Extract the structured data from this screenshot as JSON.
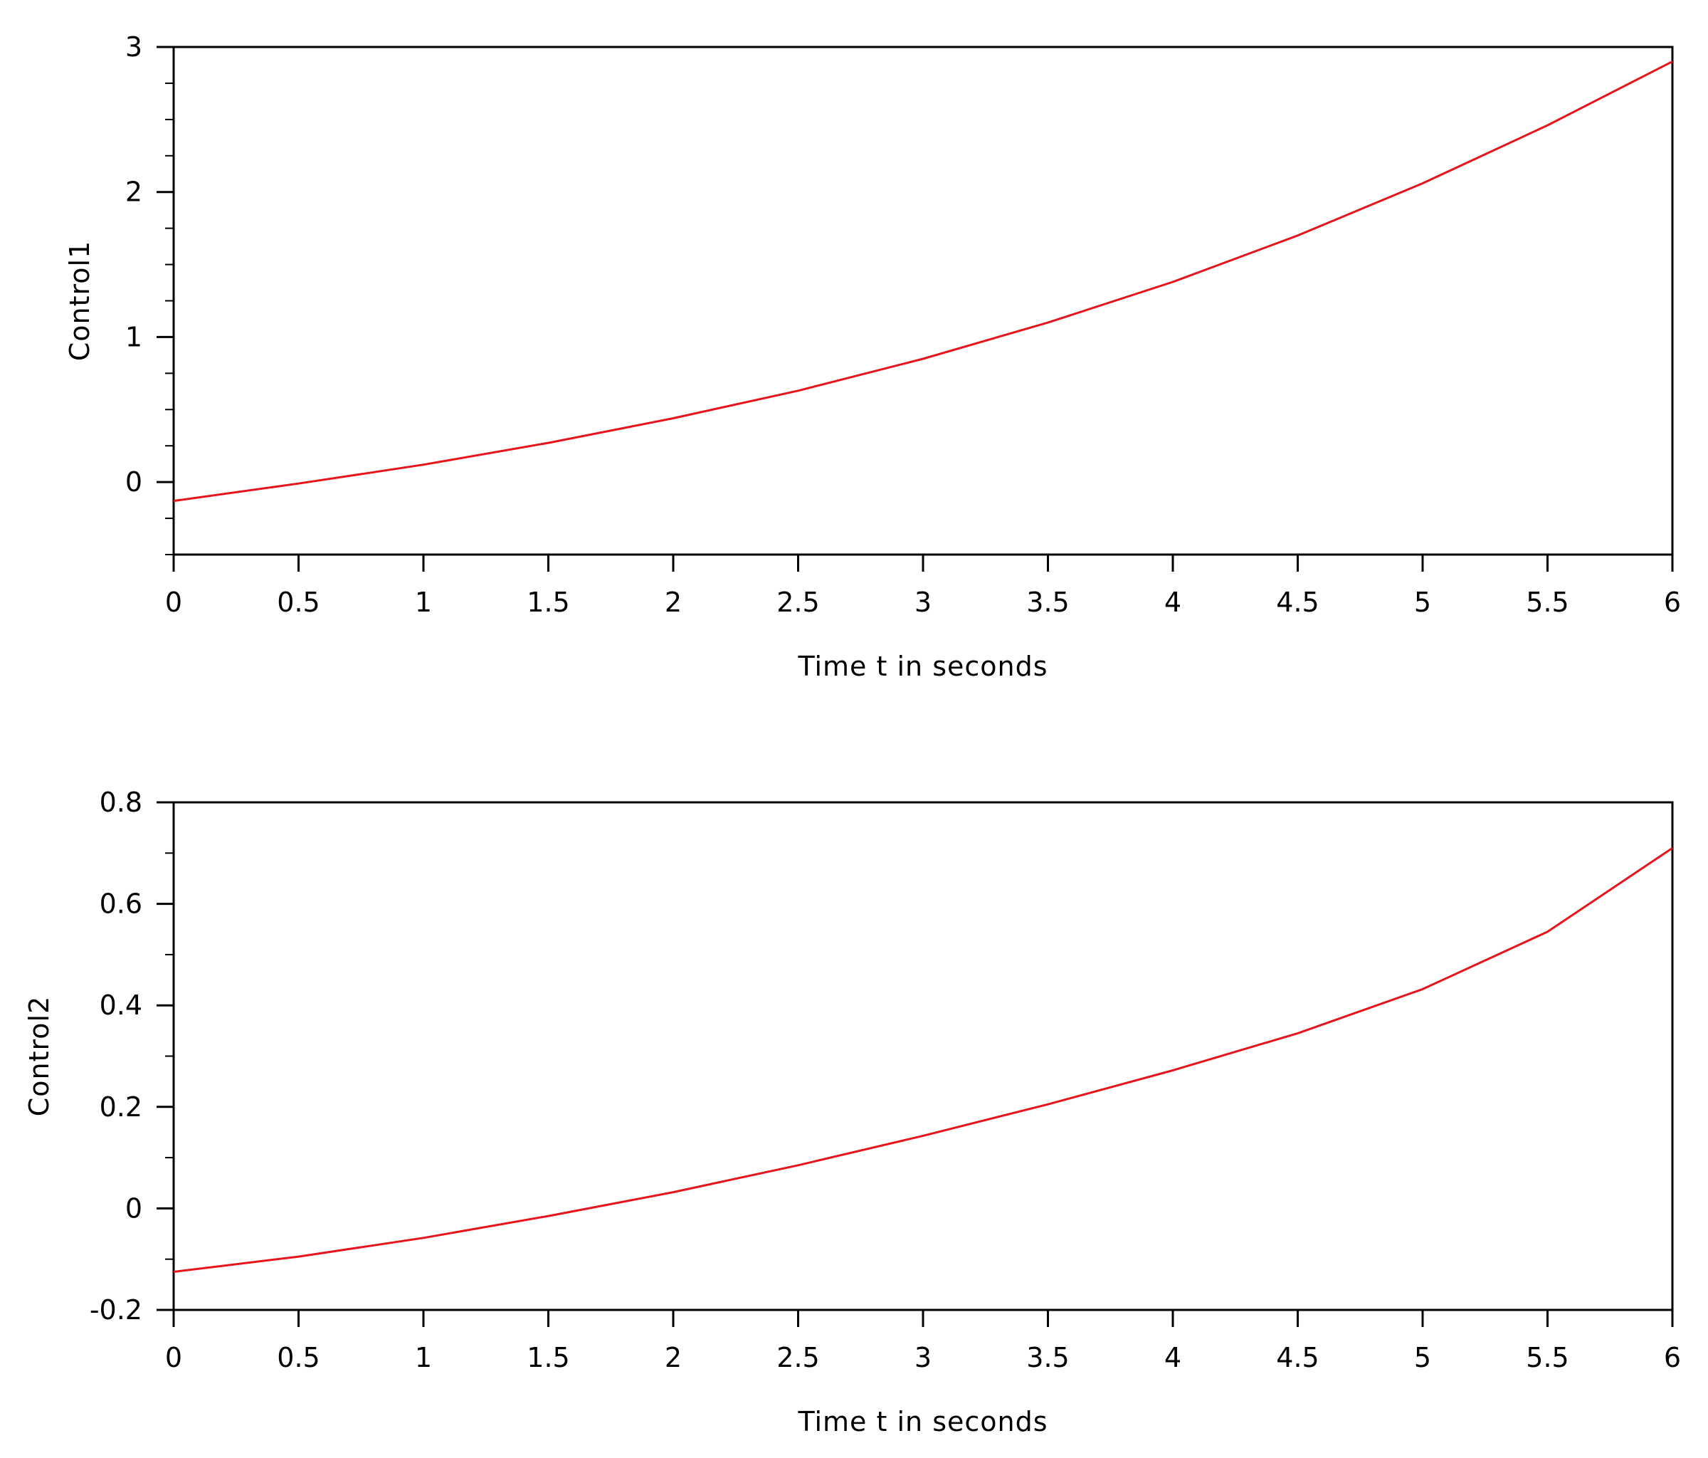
{
  "colors": {
    "line": "#e8141c",
    "axes": "#000000",
    "background": "#ffffff"
  },
  "chart_data": [
    {
      "type": "line",
      "title": "",
      "xlabel": "Time t in seconds",
      "ylabel": "Control1",
      "xlim": [
        0,
        6
      ],
      "ylim": [
        -0.5,
        3
      ],
      "xticks": [
        "0",
        "0.5",
        "1",
        "1.5",
        "2",
        "2.5",
        "3",
        "3.5",
        "4",
        "4.5",
        "5",
        "5.5",
        "6"
      ],
      "yticks": [
        "0",
        "1",
        "2",
        "3"
      ],
      "grid": false,
      "legend": "none",
      "series": [
        {
          "color": "#e8141c",
          "x": [
            0,
            0.5,
            1,
            1.5,
            2,
            2.5,
            3,
            3.5,
            4,
            4.5,
            5,
            5.5,
            6
          ],
          "y": [
            -0.13,
            -0.01,
            0.12,
            0.27,
            0.44,
            0.63,
            0.85,
            1.1,
            1.38,
            1.7,
            2.06,
            2.46,
            2.9
          ]
        }
      ]
    },
    {
      "type": "line",
      "title": "",
      "xlabel": "Time t in seconds",
      "ylabel": "Control2",
      "xlim": [
        0,
        6
      ],
      "ylim": [
        -0.2,
        0.8
      ],
      "xticks": [
        "0",
        "0.5",
        "1",
        "1.5",
        "2",
        "2.5",
        "3",
        "3.5",
        "4",
        "4.5",
        "5",
        "5.5",
        "6"
      ],
      "yticks": [
        "-0.2",
        "0",
        "0.2",
        "0.4",
        "0.6",
        "0.8"
      ],
      "grid": false,
      "legend": "none",
      "series": [
        {
          "color": "#e8141c",
          "x": [
            0,
            0.5,
            1,
            1.5,
            2,
            2.5,
            3,
            3.5,
            4,
            4.5,
            5,
            5.5,
            6
          ],
          "y": [
            -0.125,
            -0.095,
            -0.058,
            -0.015,
            0.032,
            0.085,
            0.143,
            0.205,
            0.272,
            0.345,
            0.432,
            0.545,
            0.71
          ]
        }
      ]
    }
  ]
}
